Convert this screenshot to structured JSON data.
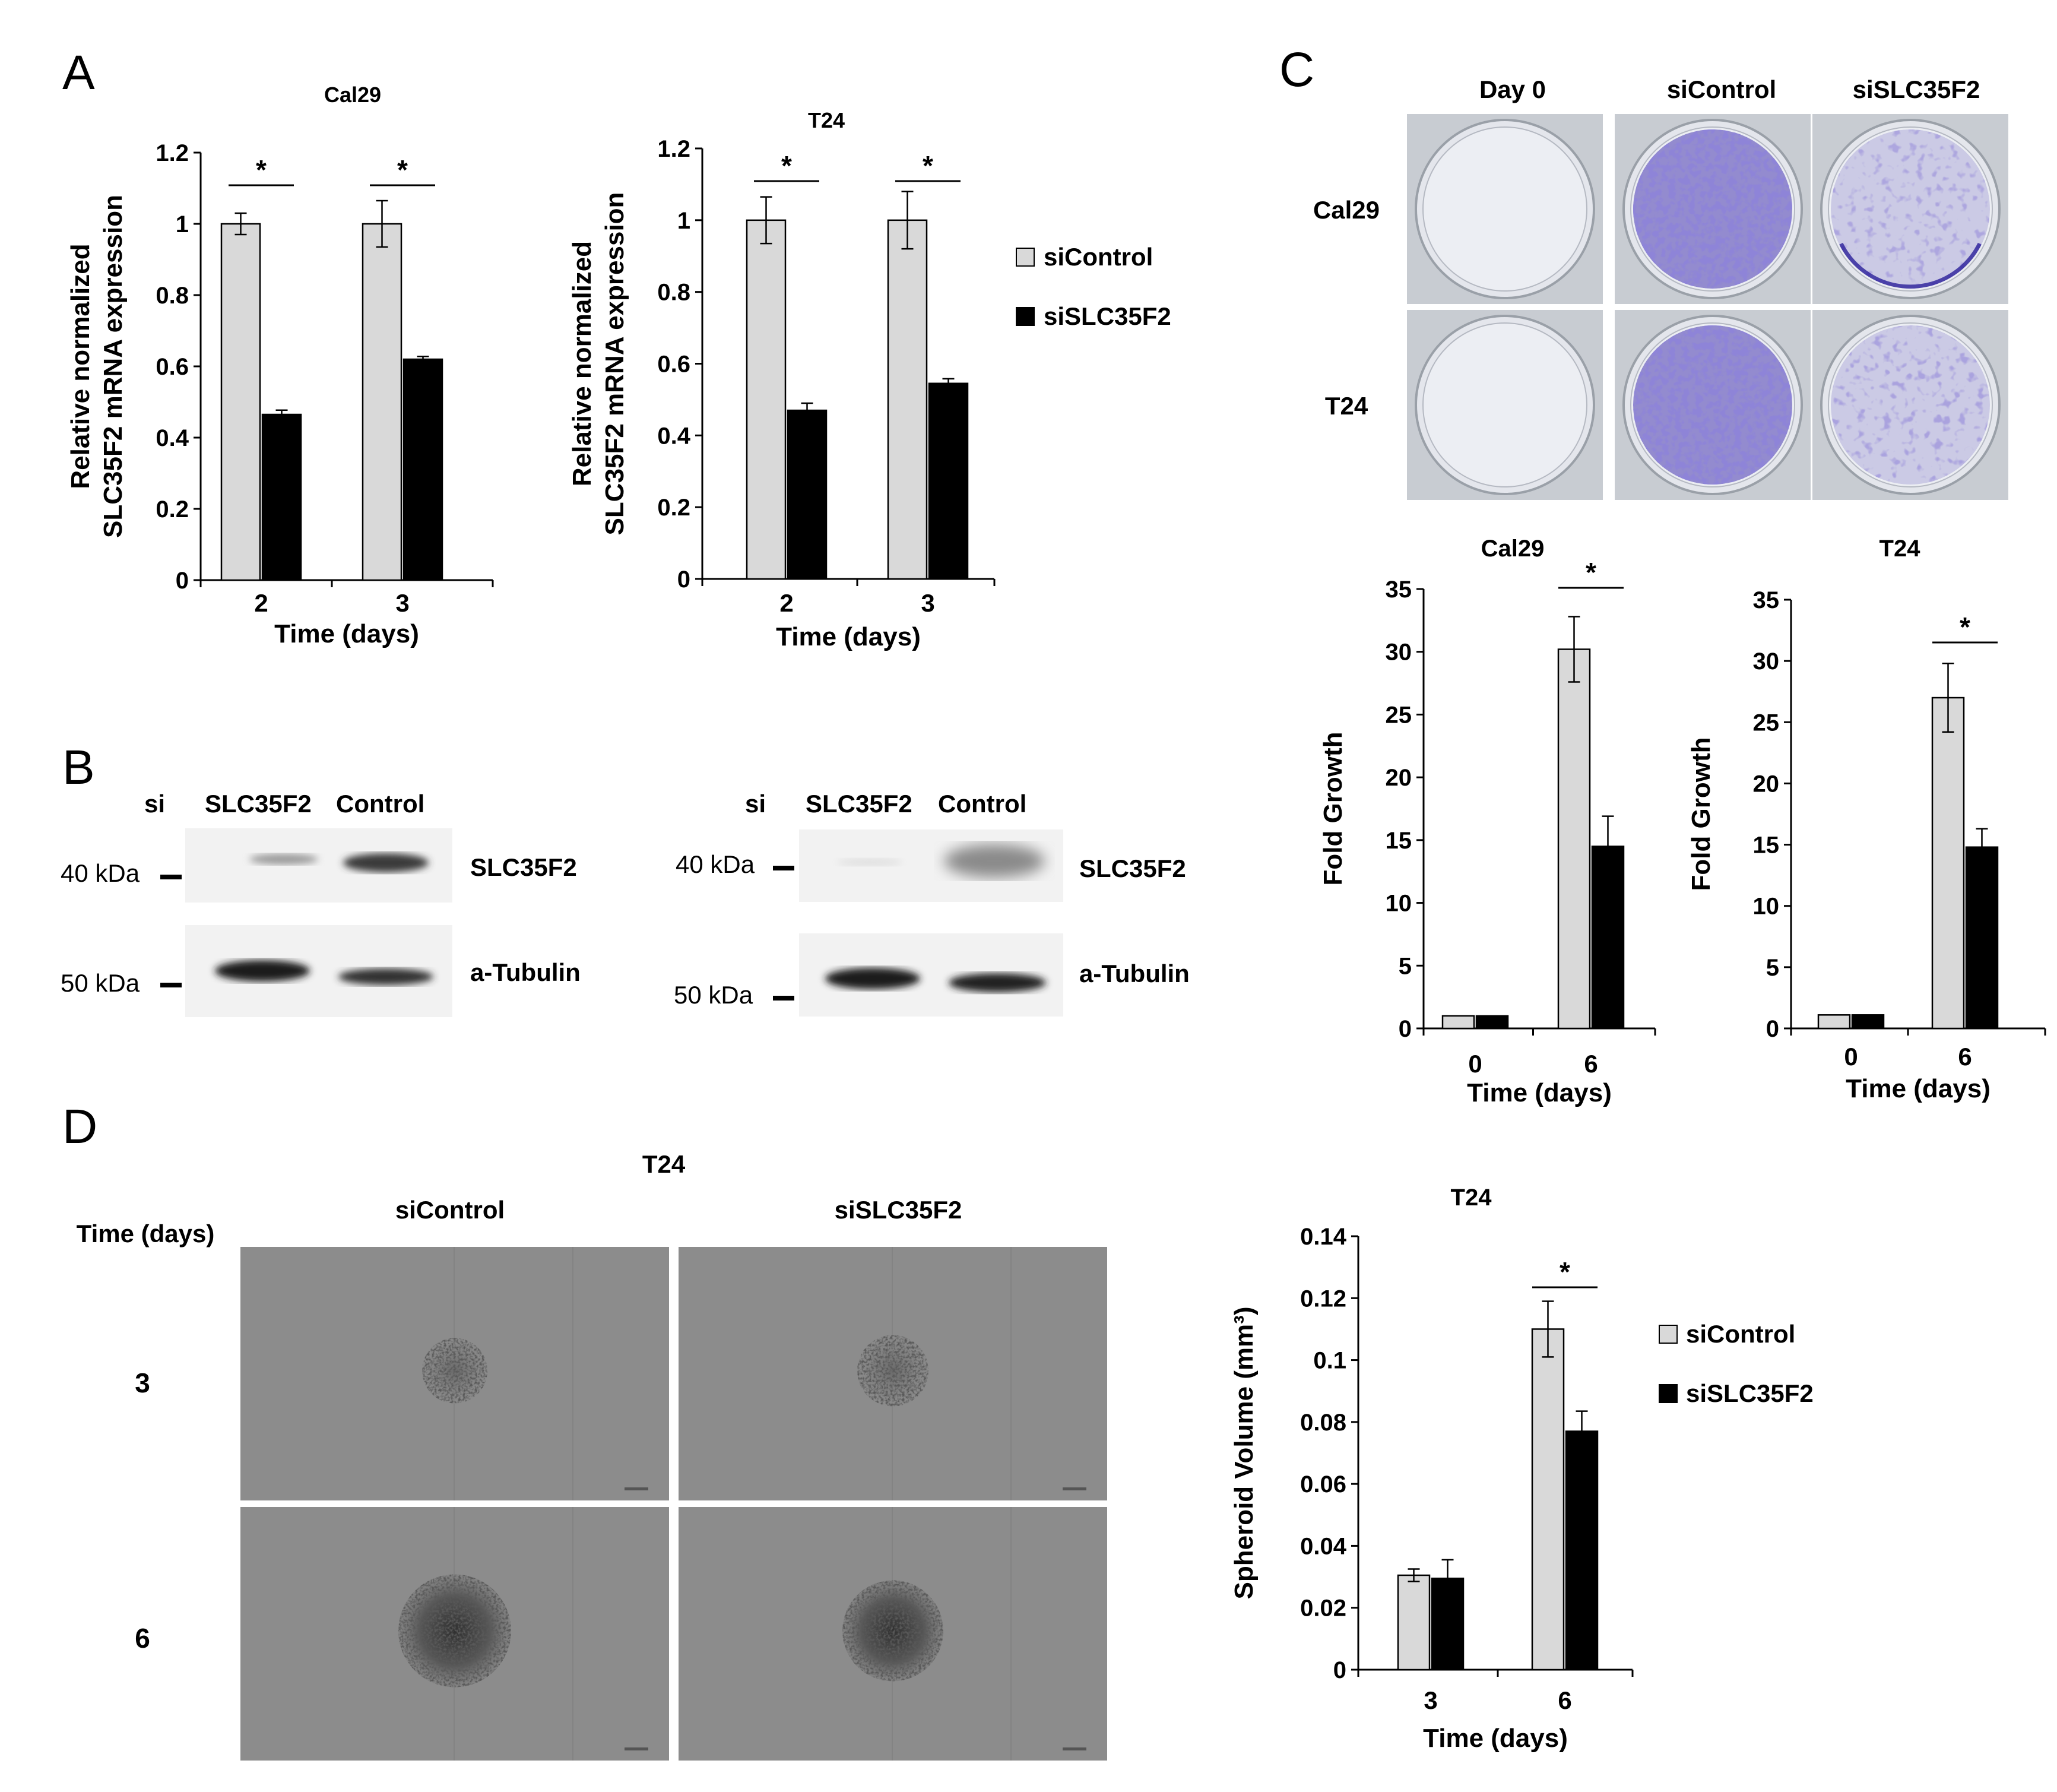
{
  "colors": {
    "control": "#d9d9d9",
    "knockdown": "#000000",
    "crystal_violet": "#4a3ab0"
  },
  "panels": {
    "A": {
      "letter": "A"
    },
    "B": {
      "letter": "B",
      "left": {
        "si_label": "si",
        "lane1": "SLC35F2",
        "lane2": "Control",
        "marker1": "40 kDa",
        "marker2": "50 kDa",
        "band1": "SLC35F2",
        "band2": "a-Tubulin"
      },
      "right": {
        "si_label": "si",
        "lane1": "SLC35F2",
        "lane2": "Control",
        "marker1": "40 kDa",
        "marker2": "50 kDa",
        "band1": "SLC35F2",
        "band2": "a-Tubulin"
      }
    },
    "C": {
      "letter": "C",
      "col_headers": [
        "Day 0",
        "siControl",
        "siSLC35F2"
      ],
      "row_labels": [
        "Cal29",
        "T24"
      ]
    },
    "D": {
      "letter": "D",
      "title": "T24",
      "col_headers": [
        "siControl",
        "siSLC35F2"
      ],
      "row_header": "Time (days)",
      "row_labels": [
        "3",
        "6"
      ]
    }
  },
  "legends": {
    "A": [
      "siControl",
      "siSLC35F2"
    ],
    "D": [
      "siControl",
      "siSLC35F2"
    ]
  },
  "chart_data": [
    {
      "id": "A-Cal29",
      "type": "bar",
      "title": "Cal29",
      "ylabel": [
        "Relative normalized",
        "SLC35F2 mRNA expression"
      ],
      "xlabel": "Time (days)",
      "categories": [
        "2",
        "3"
      ],
      "ylim": [
        0,
        1.2
      ],
      "yticks": [
        "0",
        "0.2",
        "0.4",
        "0.6",
        "0.8",
        "1",
        "1.2"
      ],
      "series": [
        {
          "name": "siControl",
          "values": [
            1.0,
            1.0
          ],
          "errors": [
            0.03,
            0.065
          ]
        },
        {
          "name": "siSLC35F2",
          "values": [
            0.465,
            0.62
          ],
          "errors": [
            0.012,
            0.008
          ]
        }
      ],
      "significance": [
        "*",
        "*"
      ]
    },
    {
      "id": "A-T24",
      "type": "bar",
      "title": "T24",
      "ylabel": [
        "Relative normalized",
        "SLC35F2 mRNA expression"
      ],
      "xlabel": "Time (days)",
      "categories": [
        "2",
        "3"
      ],
      "ylim": [
        0,
        1.2
      ],
      "yticks": [
        "0",
        "0.2",
        "0.4",
        "0.6",
        "0.8",
        "1",
        "1.2"
      ],
      "series": [
        {
          "name": "siControl",
          "values": [
            1.0,
            1.0
          ],
          "errors": [
            0.065,
            0.08
          ]
        },
        {
          "name": "siSLC35F2",
          "values": [
            0.47,
            0.545
          ],
          "errors": [
            0.02,
            0.013
          ]
        }
      ],
      "significance": [
        "*",
        "*"
      ]
    },
    {
      "id": "C-Cal29",
      "type": "bar",
      "title": "Cal29",
      "ylabel": [
        "Fold Growth"
      ],
      "xlabel": "Time (days)",
      "categories": [
        "0",
        "6"
      ],
      "ylim": [
        0,
        35
      ],
      "yticks": [
        "0",
        "5",
        "10",
        "15",
        "20",
        "25",
        "30",
        "35"
      ],
      "series": [
        {
          "name": "siControl",
          "values": [
            1.0,
            30.2
          ],
          "errors": [
            0,
            2.6
          ]
        },
        {
          "name": "siSLC35F2",
          "values": [
            1.0,
            14.5
          ],
          "errors": [
            0,
            2.4
          ]
        }
      ],
      "significance": [
        "",
        "*"
      ]
    },
    {
      "id": "C-T24",
      "type": "bar",
      "title": "T24",
      "ylabel": [
        "Fold Growth"
      ],
      "xlabel": "Time (days)",
      "categories": [
        "0",
        "6"
      ],
      "ylim": [
        0,
        35
      ],
      "yticks": [
        "0",
        "5",
        "10",
        "15",
        "20",
        "25",
        "30",
        "35"
      ],
      "series": [
        {
          "name": "siControl",
          "values": [
            1.1,
            27.0
          ],
          "errors": [
            0,
            2.8
          ]
        },
        {
          "name": "siSLC35F2",
          "values": [
            1.1,
            14.8
          ],
          "errors": [
            0,
            1.5
          ]
        }
      ],
      "significance": [
        "",
        "*"
      ]
    },
    {
      "id": "D-T24",
      "type": "bar",
      "title": "T24",
      "ylabel": [
        "Spheroid Volume (mm³)"
      ],
      "xlabel": "Time (days)",
      "categories": [
        "3",
        "6"
      ],
      "ylim": [
        0,
        0.14
      ],
      "yticks": [
        "0",
        "0.02",
        "0.04",
        "0.06",
        "0.08",
        "0.1",
        "0.12",
        "0.14"
      ],
      "series": [
        {
          "name": "siControl",
          "values": [
            0.0305,
            0.11
          ],
          "errors": [
            0.002,
            0.009
          ]
        },
        {
          "name": "siSLC35F2",
          "values": [
            0.0295,
            0.077
          ],
          "errors": [
            0.006,
            0.0065
          ]
        }
      ],
      "significance": [
        "",
        "*"
      ]
    }
  ]
}
